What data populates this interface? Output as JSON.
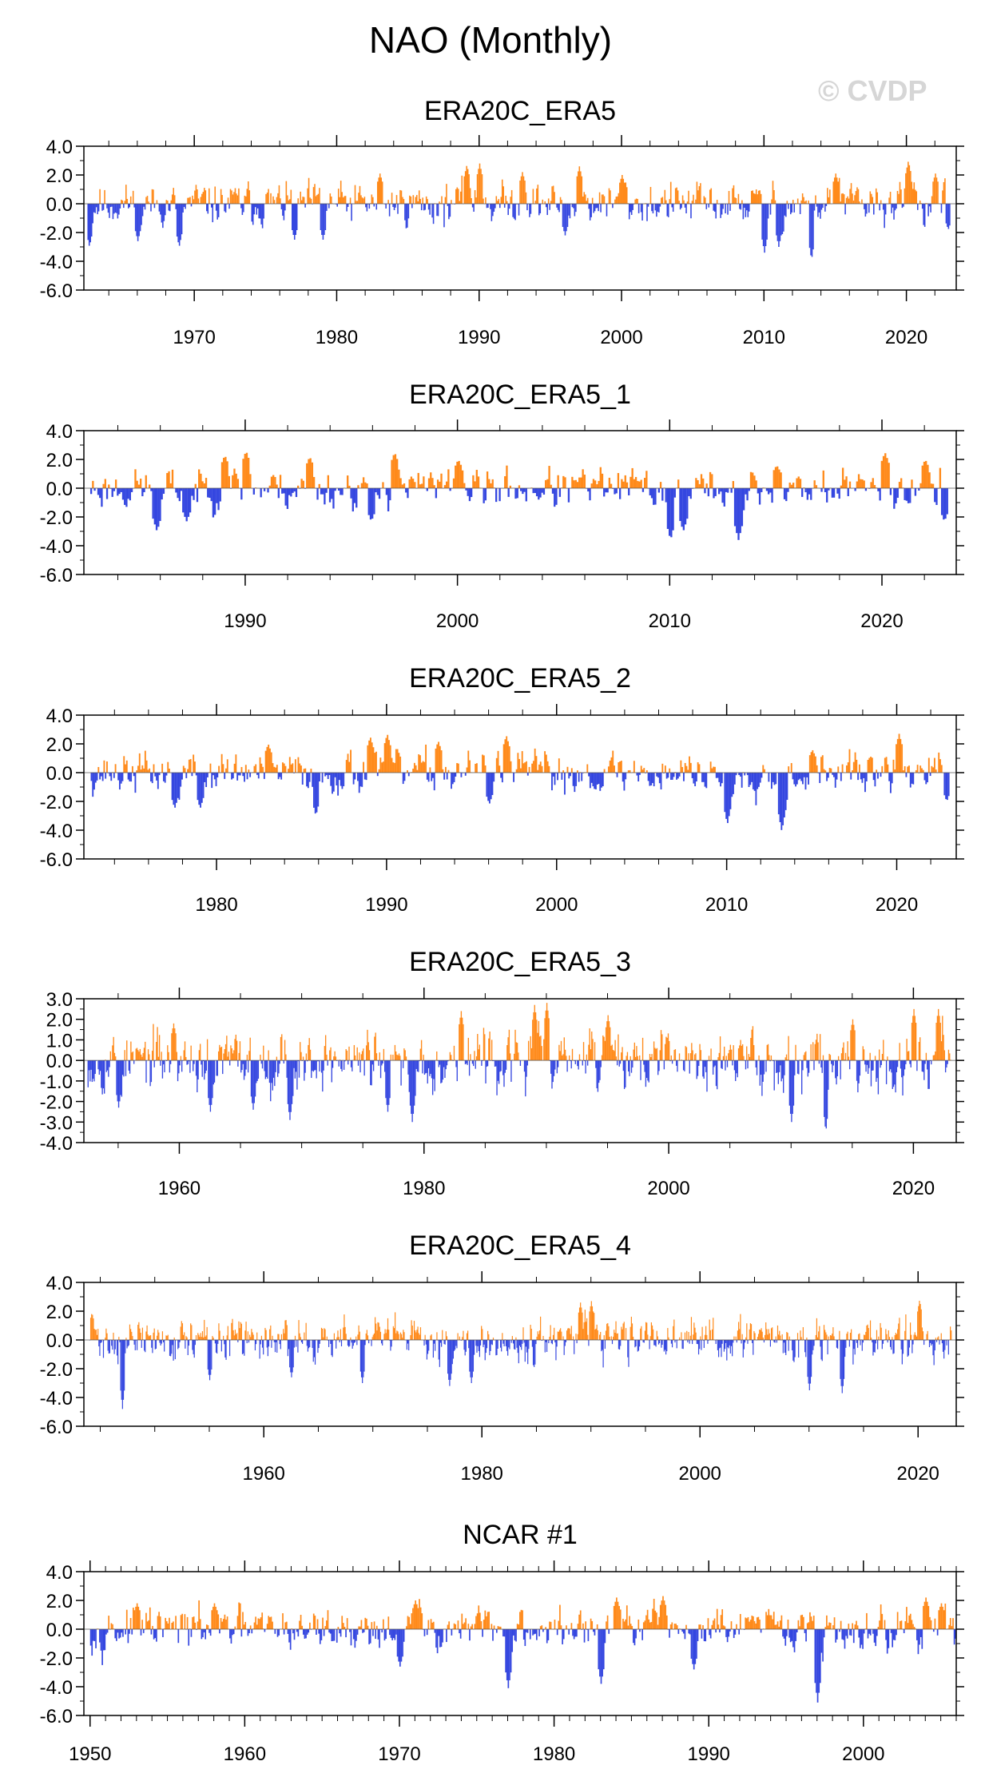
{
  "title": "NAO (Monthly)",
  "watermark": "© CVDP",
  "colors": {
    "positive": "#ff8a1a",
    "negative": "#3547e0",
    "frame": "#000000"
  },
  "chart_data": [
    {
      "type": "bar",
      "title": "ERA20C_ERA5",
      "x_range": [
        1962.25,
        2023.5
      ],
      "ylim": [
        -6,
        4
      ],
      "yticks": [
        "4.0",
        "2.0",
        "0.0",
        "-2.0",
        "-4.0",
        "-6.0"
      ],
      "ytick_values": [
        4,
        2,
        0,
        -2,
        -4,
        -6
      ],
      "xticks": [
        1970,
        1980,
        1990,
        2000,
        2010,
        2020
      ],
      "x_minor_step": 2,
      "y_minor_step": 1,
      "start": 1962.5,
      "end": 2023.0,
      "seed": 11,
      "events": [
        {
          "t": 1962.6,
          "v": -3.0
        },
        {
          "t": 1966.0,
          "v": -2.6
        },
        {
          "t": 1968.9,
          "v": -3.0
        },
        {
          "t": 1977.0,
          "v": -2.5
        },
        {
          "t": 1979.0,
          "v": -2.5
        },
        {
          "t": 1983.0,
          "v": 2.1
        },
        {
          "t": 1989.1,
          "v": 2.7
        },
        {
          "t": 1990.0,
          "v": 2.8
        },
        {
          "t": 1993.0,
          "v": 2.2
        },
        {
          "t": 1996.0,
          "v": -2.2
        },
        {
          "t": 1997.0,
          "v": 2.6
        },
        {
          "t": 2000.0,
          "v": 2.0
        },
        {
          "t": 2010.0,
          "v": -3.4
        },
        {
          "t": 2011.0,
          "v": -3.0
        },
        {
          "t": 2013.3,
          "v": -3.9
        },
        {
          "t": 2015.0,
          "v": 2.1
        },
        {
          "t": 2020.1,
          "v": 3.0
        },
        {
          "t": 2022.0,
          "v": 2.1
        },
        {
          "t": 2022.9,
          "v": -1.8
        }
      ]
    },
    {
      "type": "bar",
      "title": "ERA20C_ERA5_1",
      "x_range": [
        1982.4,
        2023.5
      ],
      "ylim": [
        -6,
        4
      ],
      "yticks": [
        "4.0",
        "2.0",
        "0.0",
        "-2.0",
        "-4.0",
        "-6.0"
      ],
      "ytick_values": [
        4,
        2,
        0,
        -2,
        -4,
        -6
      ],
      "xticks": [
        1990,
        2000,
        2010,
        2020
      ],
      "x_minor_step": 2,
      "y_minor_step": 1,
      "start": 1982.7,
      "end": 2023.0,
      "seed": 23,
      "events": [
        {
          "t": 1985.8,
          "v": -3.0
        },
        {
          "t": 1987.2,
          "v": -2.3
        },
        {
          "t": 1989.0,
          "v": 2.3
        },
        {
          "t": 1990.0,
          "v": 2.6
        },
        {
          "t": 1993.0,
          "v": 2.2
        },
        {
          "t": 1995.9,
          "v": -2.3
        },
        {
          "t": 1997.0,
          "v": 2.5
        },
        {
          "t": 2000.0,
          "v": 2.0
        },
        {
          "t": 2010.0,
          "v": -3.6
        },
        {
          "t": 2010.6,
          "v": -3.0
        },
        {
          "t": 2013.2,
          "v": -3.6
        },
        {
          "t": 2015.0,
          "v": 1.6
        },
        {
          "t": 2020.1,
          "v": 2.5
        },
        {
          "t": 2022.0,
          "v": 2.0
        },
        {
          "t": 2022.9,
          "v": -2.3
        }
      ]
    },
    {
      "type": "bar",
      "title": "ERA20C_ERA5_2",
      "x_range": [
        1972.2,
        2023.5
      ],
      "ylim": [
        -6,
        4
      ],
      "yticks": [
        "4.0",
        "2.0",
        "0.0",
        "-2.0",
        "-4.0",
        "-6.0"
      ],
      "ytick_values": [
        4,
        2,
        0,
        -2,
        -4,
        -6
      ],
      "xticks": [
        1980,
        1990,
        2000,
        2010,
        2020
      ],
      "x_minor_step": 2,
      "y_minor_step": 1,
      "start": 1972.6,
      "end": 2023.0,
      "seed": 37,
      "events": [
        {
          "t": 1977.5,
          "v": -2.5
        },
        {
          "t": 1979.0,
          "v": -2.5
        },
        {
          "t": 1983.0,
          "v": 2.0
        },
        {
          "t": 1985.8,
          "v": -3.0
        },
        {
          "t": 1989.0,
          "v": 2.5
        },
        {
          "t": 1990.0,
          "v": 2.7
        },
        {
          "t": 1993.0,
          "v": 2.2
        },
        {
          "t": 1996.0,
          "v": -2.2
        },
        {
          "t": 1997.0,
          "v": 2.6
        },
        {
          "t": 2010.0,
          "v": -3.6
        },
        {
          "t": 2013.2,
          "v": -4.1
        },
        {
          "t": 2015.0,
          "v": 1.6
        },
        {
          "t": 2020.1,
          "v": 2.7
        },
        {
          "t": 2022.9,
          "v": -2.0
        }
      ]
    },
    {
      "type": "bar",
      "title": "ERA20C_ERA5_3",
      "x_range": [
        1952.2,
        2023.5
      ],
      "ylim": [
        -4,
        3
      ],
      "yticks": [
        "3.0",
        "2.0",
        "1.0",
        "0.0",
        "-1.0",
        "-2.0",
        "-3.0",
        "-4.0"
      ],
      "ytick_values": [
        3,
        2,
        1,
        0,
        -1,
        -2,
        -3,
        -4
      ],
      "xticks": [
        1960,
        1980,
        2000,
        2020
      ],
      "x_minor_step": 5,
      "y_minor_step": 0.5,
      "start": 1952.5,
      "end": 2023.0,
      "seed": 53,
      "events": [
        {
          "t": 1955.0,
          "v": -2.3
        },
        {
          "t": 1959.5,
          "v": 1.8
        },
        {
          "t": 1962.5,
          "v": -2.5
        },
        {
          "t": 1966.0,
          "v": -2.4
        },
        {
          "t": 1969.0,
          "v": -2.9
        },
        {
          "t": 1977.0,
          "v": -2.5
        },
        {
          "t": 1979.0,
          "v": -3.0
        },
        {
          "t": 1983.0,
          "v": 2.4
        },
        {
          "t": 1989.0,
          "v": 2.7
        },
        {
          "t": 1990.0,
          "v": 2.8
        },
        {
          "t": 1995.0,
          "v": 2.2
        },
        {
          "t": 2010.0,
          "v": -3.0
        },
        {
          "t": 2012.8,
          "v": -3.5
        },
        {
          "t": 2015.0,
          "v": 2.0
        },
        {
          "t": 2020.0,
          "v": 2.5
        },
        {
          "t": 2022.0,
          "v": 2.5
        }
      ]
    },
    {
      "type": "bar",
      "title": "ERA20C_ERA5_4",
      "x_range": [
        1943.5,
        2023.5
      ],
      "ylim": [
        -6,
        4
      ],
      "yticks": [
        "4.0",
        "2.0",
        "0.0",
        "-2.0",
        "-4.0",
        "-6.0"
      ],
      "ytick_values": [
        4,
        2,
        0,
        -2,
        -4,
        -6
      ],
      "xticks": [
        1960,
        1980,
        2000,
        2020
      ],
      "x_minor_step": 5,
      "y_minor_step": 1,
      "start": 1944.0,
      "end": 2023.0,
      "seed": 71,
      "events": [
        {
          "t": 1944.2,
          "v": 1.9
        },
        {
          "t": 1947.0,
          "v": -4.8
        },
        {
          "t": 1955.0,
          "v": -2.8
        },
        {
          "t": 1962.5,
          "v": -2.6
        },
        {
          "t": 1969.0,
          "v": -3.0
        },
        {
          "t": 1977.0,
          "v": -3.2
        },
        {
          "t": 1979.0,
          "v": -3.0
        },
        {
          "t": 1989.0,
          "v": 2.6
        },
        {
          "t": 1990.0,
          "v": 2.7
        },
        {
          "t": 2010.0,
          "v": -3.5
        },
        {
          "t": 2013.0,
          "v": -3.7
        },
        {
          "t": 2020.1,
          "v": 2.8
        }
      ]
    },
    {
      "type": "bar",
      "title": "NCAR #1",
      "x_range": [
        1949.6,
        2006.0
      ],
      "ylim": [
        -6,
        4
      ],
      "yticks": [
        "4.0",
        "2.0",
        "0.0",
        "-2.0",
        "-4.0",
        "-6.0"
      ],
      "ytick_values": [
        4,
        2,
        0,
        -2,
        -4,
        -6
      ],
      "xticks": [
        1950,
        1960,
        1970,
        1980,
        1990,
        2000
      ],
      "x_minor_step": 1,
      "y_minor_step": 1,
      "start": 1950.0,
      "end": 2005.9,
      "seed": 97,
      "events": [
        {
          "t": 1953.0,
          "v": 1.8
        },
        {
          "t": 1958.0,
          "v": 1.8
        },
        {
          "t": 1970.0,
          "v": -2.6
        },
        {
          "t": 1971.0,
          "v": 2.0
        },
        {
          "t": 1977.0,
          "v": -4.1
        },
        {
          "t": 1983.0,
          "v": -3.8
        },
        {
          "t": 1984.0,
          "v": 2.2
        },
        {
          "t": 1987.0,
          "v": 2.3
        },
        {
          "t": 1989.0,
          "v": -2.8
        },
        {
          "t": 1997.0,
          "v": -5.1
        },
        {
          "t": 2004.0,
          "v": 2.2
        },
        {
          "t": 2005.0,
          "v": 1.8
        }
      ]
    }
  ]
}
